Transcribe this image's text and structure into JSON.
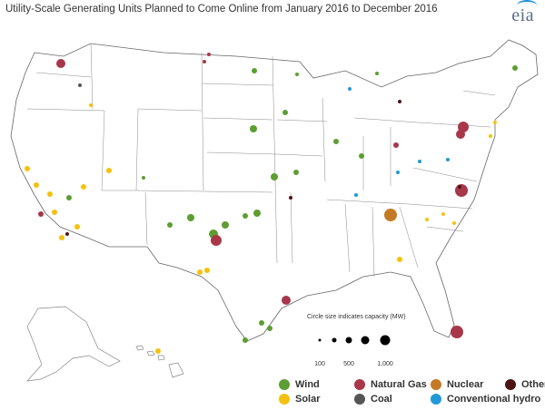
{
  "title": "Utility-Scale Generating Units Planned to Come Online from January 2016 to December 2016",
  "logo_text": "eia",
  "size_legend": {
    "title": "Circle size indicates capacity (MW)",
    "labels": [
      "100",
      "500",
      "1,000"
    ]
  },
  "legend": [
    {
      "key": "wind",
      "label": "Wind",
      "color": "#5c9e31"
    },
    {
      "key": "natural_gas",
      "label": "Natural Gas",
      "color": "#a8374a"
    },
    {
      "key": "nuclear",
      "label": "Nuclear",
      "color": "#c47a25"
    },
    {
      "key": "other",
      "label": "Other",
      "color": "#4d1414"
    },
    {
      "key": "solar",
      "label": "Solar",
      "color": "#f5c10e"
    },
    {
      "key": "coal",
      "label": "Coal",
      "color": "#555555"
    },
    {
      "key": "hydro",
      "label": "Conventional hydro",
      "color": "#1f9ad6"
    }
  ]
}
